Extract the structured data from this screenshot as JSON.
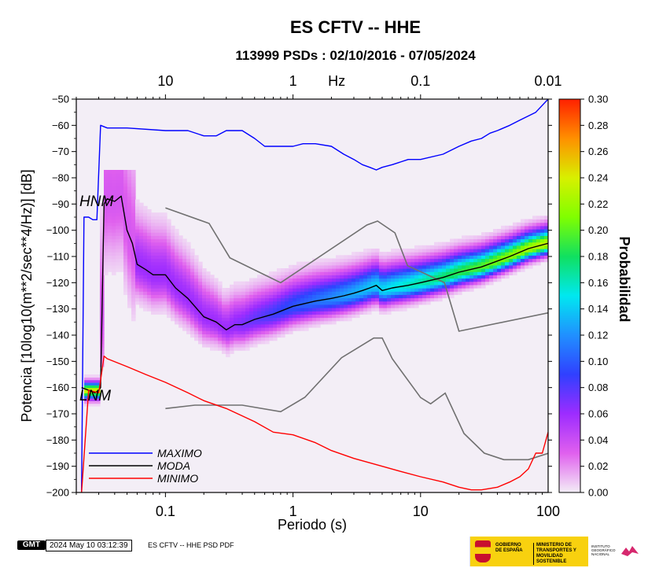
{
  "chart_data": {
    "type": "heatmap",
    "title": "ES CFTV -- HHE",
    "subtitle": "113999 PSDs : 02/10/2016 - 07/05/2024",
    "xlabel": "Periodo (s)",
    "ylabel": "Potencia [10log10(m**2/sec**4/Hz)] [dB]",
    "x_scale": "log",
    "xlim": [
      0.02,
      100
    ],
    "ylim": [
      -200,
      -50
    ],
    "x_ticks": [
      0.1,
      1,
      10,
      100
    ],
    "x_tick_labels": [
      "0.1",
      "1",
      "10",
      "100"
    ],
    "y_ticks": [
      -200,
      -190,
      -180,
      -170,
      -160,
      -150,
      -140,
      -130,
      -120,
      -110,
      -100,
      -90,
      -80,
      -70,
      -60,
      -50
    ],
    "y_tick_labels": [
      "−200",
      "−190",
      "−180",
      "−170",
      "−160",
      "−150",
      "−140",
      "−130",
      "−120",
      "−110",
      "−100",
      "−90",
      "−80",
      "−70",
      "−60",
      "−50"
    ],
    "top_axis": {
      "unit_label": "Hz",
      "tick_periods": [
        0.1,
        1,
        10,
        100
      ],
      "tick_labels": [
        "10",
        "1",
        "0.1",
        "0.01"
      ],
      "unit_position_period": 2.2
    },
    "colorbar": {
      "label": "Probabilidad",
      "range": [
        0,
        0.3
      ],
      "ticks": [
        0.0,
        0.02,
        0.04,
        0.06,
        0.08,
        0.1,
        0.12,
        0.14,
        0.16,
        0.18,
        0.2,
        0.22,
        0.24,
        0.26,
        0.28,
        0.3
      ],
      "tick_labels": [
        "0.00",
        "0.02",
        "0.04",
        "0.06",
        "0.08",
        "0.10",
        "0.12",
        "0.14",
        "0.16",
        "0.18",
        "0.20",
        "0.22",
        "0.24",
        "0.26",
        "0.28",
        "0.30"
      ],
      "colors": [
        "#f3eef6",
        "#e060ee",
        "#9d2cff",
        "#3040ff",
        "#2090ff",
        "#00e8f0",
        "#10e060",
        "#80ff00",
        "#d8f000",
        "#ff9000",
        "#ff2000"
      ]
    },
    "series": [
      {
        "name": "MAXIMO",
        "color": "#0000ff",
        "x": [
          0.022,
          0.023,
          0.025,
          0.027,
          0.029,
          0.031,
          0.035,
          0.05,
          0.1,
          0.15,
          0.2,
          0.25,
          0.3,
          0.4,
          0.5,
          0.6,
          0.8,
          1.0,
          1.2,
          1.5,
          2.0,
          2.5,
          3.0,
          3.5,
          4.0,
          4.5,
          5.0,
          6.0,
          8.0,
          10,
          15,
          20,
          25,
          30,
          35,
          40,
          50,
          60,
          80,
          100
        ],
        "y": [
          -200,
          -95,
          -95,
          -96,
          -96,
          -60,
          -61,
          -61,
          -62,
          -62,
          -64,
          -64,
          -62,
          -62,
          -65,
          -68,
          -68,
          -68,
          -67,
          -67,
          -68,
          -71,
          -73,
          -75,
          -76,
          -77,
          -76,
          -75,
          -73,
          -73,
          -71,
          -68,
          -66,
          -65,
          -63,
          -62,
          -60,
          -58,
          -55,
          -50
        ]
      },
      {
        "name": "MODA",
        "color": "#000000",
        "x": [
          0.022,
          0.025,
          0.028,
          0.03,
          0.031,
          0.033,
          0.035,
          0.04,
          0.045,
          0.05,
          0.055,
          0.06,
          0.07,
          0.08,
          0.1,
          0.12,
          0.15,
          0.2,
          0.25,
          0.3,
          0.35,
          0.4,
          0.5,
          0.7,
          1.0,
          1.5,
          2.0,
          2.5,
          3.0,
          3.5,
          4.0,
          4.5,
          5.0,
          6.0,
          8.0,
          10,
          15,
          20,
          30,
          50,
          70,
          100
        ],
        "y": [
          -160,
          -161,
          -162,
          -161,
          -160,
          -90,
          -88,
          -89,
          -87,
          -100,
          -105,
          -113,
          -115,
          -117,
          -117,
          -122,
          -126,
          -133,
          -135,
          -138,
          -136,
          -136,
          -134,
          -132,
          -129,
          -127,
          -126,
          -125,
          -124,
          -123,
          -122,
          -121,
          -123,
          -122,
          -121,
          -120,
          -118,
          -116,
          -114,
          -110,
          -107,
          -105
        ]
      },
      {
        "name": "MINIMO",
        "color": "#ff0000",
        "x": [
          0.022,
          0.025,
          0.03,
          0.033,
          0.035,
          0.05,
          0.07,
          0.1,
          0.15,
          0.2,
          0.3,
          0.5,
          0.7,
          1.0,
          1.5,
          2.0,
          3.0,
          5.0,
          7.0,
          10,
          15,
          20,
          25,
          30,
          40,
          50,
          60,
          70,
          80,
          90,
          100
        ],
        "y": [
          -200,
          -161,
          -162,
          -148,
          -149,
          -152,
          -155,
          -158,
          -162,
          -165,
          -168,
          -173,
          -177,
          -178,
          -181,
          -184,
          -187,
          -190,
          -192,
          -194,
          -196,
          -198,
          -199,
          -199,
          -198,
          -196,
          -194,
          -191,
          -185,
          -185,
          -177
        ]
      }
    ],
    "reference_models": [
      {
        "name": "HNM",
        "color": "#707070",
        "x": [
          0.1,
          0.22,
          0.32,
          0.8,
          3.8,
          4.6,
          6.3,
          7.9,
          15.4,
          20,
          354.8
        ],
        "y": [
          -91.5,
          -97.4,
          -110.5,
          -120,
          -98,
          -96.5,
          -101,
          -113.5,
          -120,
          -138.5,
          -126
        ]
      },
      {
        "name": "NLNM",
        "color": "#707070",
        "x": [
          0.1,
          0.17,
          0.4,
          0.8,
          1.24,
          2.4,
          4.3,
          5.0,
          6.0,
          10.0,
          12.0,
          15.6,
          21.9,
          31.6,
          45.0,
          70.0,
          101.0
        ],
        "y": [
          -168,
          -166.7,
          -166.7,
          -169.2,
          -163.7,
          -148.6,
          -141.1,
          -141.1,
          -149,
          -163.8,
          -166.2,
          -162.1,
          -177.5,
          -185,
          -187.5,
          -187.5,
          -185
        ]
      }
    ],
    "legend": {
      "position": "bottom-left",
      "entries": [
        "MAXIMO",
        "MODA",
        "MINIMO"
      ]
    },
    "annotations": [
      {
        "text": "HNM",
        "x": 0.021,
        "y": -88
      },
      {
        "text": "LNM",
        "x": 0.021,
        "y": -167
      }
    ]
  },
  "footer": {
    "gmt_logo": "GMT",
    "timestamp": "2024 May 10 03:12:39",
    "label": "ES CFTV -- HHE PSD PDF"
  },
  "logos": {
    "gobierno": "GOBIERNO DE ESPAÑA",
    "ministerio": "MINISTERIO DE TRANSPORTES Y MOVILIDAD SOSTENIBLE",
    "instituto": "INSTITUTO GEOGRÁFICO NACIONAL"
  }
}
